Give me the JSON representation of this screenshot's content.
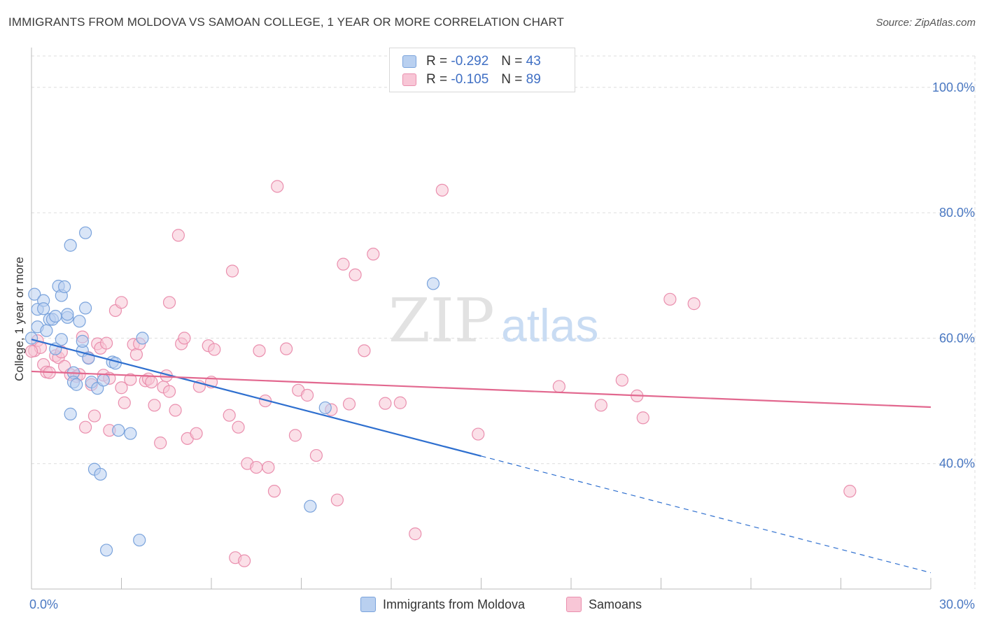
{
  "title": "IMMIGRANTS FROM MOLDOVA VS SAMOAN COLLEGE, 1 YEAR OR MORE CORRELATION CHART",
  "source": "Source: ZipAtlas.com",
  "watermark": {
    "zip": "ZIP",
    "atlas": "atlas"
  },
  "legend": {
    "r_label": "R =",
    "n_label": "N =",
    "series": [
      {
        "r": "-0.292",
        "n": "43"
      },
      {
        "r": "-0.105",
        "n": "89"
      }
    ]
  },
  "colors": {
    "blue_fill": "#b9d0f0",
    "blue_stroke": "#7aa3dc",
    "blue_line": "#2e6fcf",
    "pink_fill": "#f8c6d6",
    "pink_stroke": "#ea8fae",
    "pink_line": "#e2688f",
    "tick_text": "#4a78c2",
    "grid": "#dddddd"
  },
  "chart_data": {
    "type": "scatter",
    "title": "IMMIGRANTS FROM MOLDOVA VS SAMOAN COLLEGE, 1 YEAR OR MORE CORRELATION CHART",
    "xlabel": "",
    "ylabel": "College, 1 year or more",
    "xlim": [
      0,
      30
    ],
    "ylim": [
      20,
      105
    ],
    "x_tick_labels": [
      "0.0%",
      "30.0%"
    ],
    "y_ticks": [
      40,
      60,
      80,
      100
    ],
    "y_tick_labels": [
      "40.0%",
      "60.0%",
      "80.0%",
      "100.0%"
    ],
    "grid": true,
    "legend_position": "top-center",
    "series": [
      {
        "name": "Immigrants from Moldova",
        "points": [
          [
            0.1,
            67.0
          ],
          [
            0.2,
            64.6
          ],
          [
            0.2,
            61.8
          ],
          [
            0.4,
            66.0
          ],
          [
            0.4,
            64.7
          ],
          [
            0.5,
            61.2
          ],
          [
            0.6,
            63.0
          ],
          [
            0.7,
            63.0
          ],
          [
            0.8,
            58.3
          ],
          [
            0.8,
            63.5
          ],
          [
            0.9,
            68.3
          ],
          [
            1.0,
            66.8
          ],
          [
            1.0,
            59.8
          ],
          [
            1.1,
            68.2
          ],
          [
            1.2,
            63.3
          ],
          [
            1.2,
            63.8
          ],
          [
            1.3,
            47.9
          ],
          [
            1.3,
            74.8
          ],
          [
            1.4,
            54.5
          ],
          [
            1.4,
            53.0
          ],
          [
            1.5,
            52.6
          ],
          [
            1.6,
            62.7
          ],
          [
            1.7,
            58.0
          ],
          [
            1.7,
            59.5
          ],
          [
            1.8,
            76.8
          ],
          [
            1.8,
            64.8
          ],
          [
            1.9,
            56.8
          ],
          [
            2.0,
            53.0
          ],
          [
            2.1,
            39.1
          ],
          [
            2.2,
            52.0
          ],
          [
            2.3,
            38.3
          ],
          [
            2.4,
            53.3
          ],
          [
            2.5,
            26.2
          ],
          [
            2.7,
            56.2
          ],
          [
            2.8,
            56.0
          ],
          [
            2.9,
            45.3
          ],
          [
            3.3,
            44.8
          ],
          [
            3.6,
            27.8
          ],
          [
            3.7,
            60.0
          ],
          [
            9.3,
            33.2
          ],
          [
            9.8,
            48.9
          ],
          [
            13.4,
            68.7
          ],
          [
            0.0,
            60.0
          ]
        ]
      },
      {
        "name": "Samoans",
        "points": [
          [
            0.1,
            58.0
          ],
          [
            0.2,
            59.6
          ],
          [
            0.3,
            58.5
          ],
          [
            0.4,
            55.8
          ],
          [
            0.5,
            54.6
          ],
          [
            0.6,
            54.5
          ],
          [
            0.8,
            57.2
          ],
          [
            0.9,
            56.9
          ],
          [
            1.0,
            57.8
          ],
          [
            1.1,
            55.5
          ],
          [
            1.3,
            54.2
          ],
          [
            1.5,
            53.9
          ],
          [
            1.6,
            54.2
          ],
          [
            1.7,
            60.2
          ],
          [
            1.8,
            45.8
          ],
          [
            1.9,
            56.9
          ],
          [
            2.0,
            52.6
          ],
          [
            2.1,
            47.6
          ],
          [
            2.2,
            59.1
          ],
          [
            2.3,
            58.4
          ],
          [
            2.4,
            54.1
          ],
          [
            2.5,
            59.2
          ],
          [
            2.6,
            53.6
          ],
          [
            2.6,
            45.3
          ],
          [
            2.8,
            64.4
          ],
          [
            3.0,
            65.7
          ],
          [
            3.0,
            52.1
          ],
          [
            3.1,
            49.7
          ],
          [
            3.3,
            53.4
          ],
          [
            3.4,
            59.0
          ],
          [
            3.5,
            57.4
          ],
          [
            3.6,
            59.1
          ],
          [
            3.8,
            53.2
          ],
          [
            3.9,
            53.5
          ],
          [
            4.0,
            53.0
          ],
          [
            4.1,
            49.3
          ],
          [
            4.3,
            43.3
          ],
          [
            4.4,
            52.2
          ],
          [
            4.5,
            54.0
          ],
          [
            4.6,
            51.5
          ],
          [
            4.6,
            65.7
          ],
          [
            4.8,
            48.5
          ],
          [
            4.9,
            76.4
          ],
          [
            5.0,
            59.1
          ],
          [
            5.1,
            60.0
          ],
          [
            5.2,
            44.0
          ],
          [
            5.5,
            44.8
          ],
          [
            5.6,
            52.3
          ],
          [
            5.9,
            58.8
          ],
          [
            6.0,
            53.0
          ],
          [
            6.1,
            58.2
          ],
          [
            6.6,
            47.7
          ],
          [
            6.7,
            70.7
          ],
          [
            6.8,
            25.0
          ],
          [
            6.9,
            45.8
          ],
          [
            7.1,
            24.5
          ],
          [
            7.2,
            40.0
          ],
          [
            7.5,
            39.4
          ],
          [
            7.8,
            50.0
          ],
          [
            7.6,
            58.0
          ],
          [
            7.9,
            39.4
          ],
          [
            8.1,
            35.6
          ],
          [
            8.2,
            84.2
          ],
          [
            8.5,
            58.3
          ],
          [
            8.8,
            44.5
          ],
          [
            8.9,
            51.7
          ],
          [
            9.2,
            50.9
          ],
          [
            9.5,
            41.3
          ],
          [
            10.0,
            48.6
          ],
          [
            10.2,
            34.2
          ],
          [
            10.4,
            71.8
          ],
          [
            10.6,
            49.5
          ],
          [
            10.8,
            70.1
          ],
          [
            11.1,
            58.0
          ],
          [
            11.4,
            73.4
          ],
          [
            11.8,
            49.6
          ],
          [
            12.3,
            49.7
          ],
          [
            12.8,
            28.8
          ],
          [
            13.7,
            83.6
          ],
          [
            14.9,
            44.7
          ],
          [
            17.6,
            52.3
          ],
          [
            19.0,
            49.3
          ],
          [
            19.7,
            53.3
          ],
          [
            20.2,
            50.8
          ],
          [
            20.4,
            47.3
          ],
          [
            21.3,
            66.2
          ],
          [
            22.1,
            65.5
          ],
          [
            27.3,
            35.6
          ],
          [
            0.0,
            57.9
          ]
        ]
      }
    ],
    "trendlines": [
      {
        "series": "Immigrants from Moldova",
        "x": [
          0,
          15.0
        ],
        "y": [
          59.8,
          41.2
        ],
        "dashed_extension_to_x": 30
      },
      {
        "series": "Samoans",
        "x": [
          0,
          30
        ],
        "y": [
          54.7,
          49.0
        ]
      }
    ]
  }
}
